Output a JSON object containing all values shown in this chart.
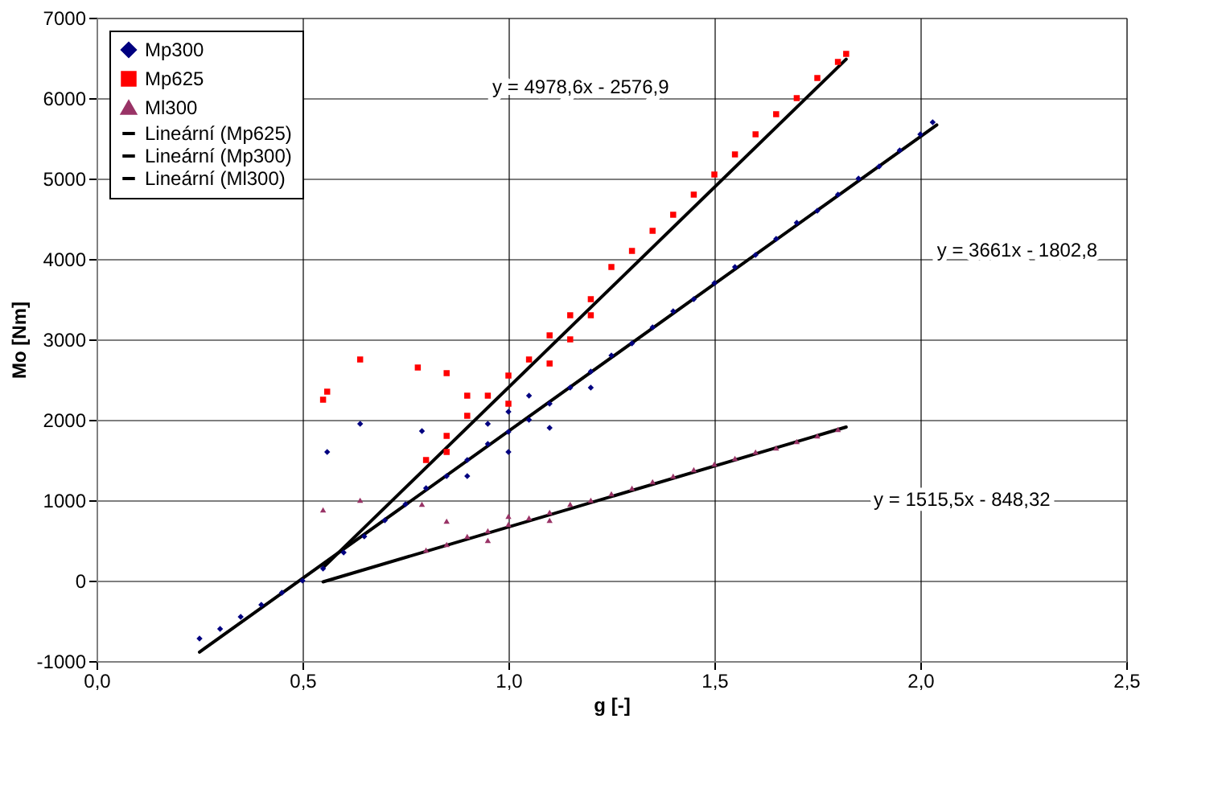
{
  "chart_data": {
    "type": "scatter",
    "xlabel": "g [-]",
    "ylabel": "Mo [Nm]",
    "xlim": [
      0,
      2.5
    ],
    "ylim": [
      -1000,
      7000
    ],
    "xticks": [
      {
        "value": 0,
        "label": "0,0"
      },
      {
        "value": 0.5,
        "label": "0,5"
      },
      {
        "value": 1,
        "label": "1,0"
      },
      {
        "value": 1.5,
        "label": "1,5"
      },
      {
        "value": 2,
        "label": "2,0"
      },
      {
        "value": 2.5,
        "label": "2,5"
      }
    ],
    "yticks": [
      -1000,
      0,
      1000,
      2000,
      3000,
      4000,
      5000,
      6000,
      7000
    ],
    "grid": true,
    "legend": "top left",
    "series": [
      {
        "name": "Mp300",
        "marker": "diamond",
        "color": "#000080",
        "x": [
          0.25,
          0.3,
          0.35,
          0.4,
          0.45,
          0.5,
          0.55,
          0.6,
          0.65,
          0.7,
          0.75,
          0.8,
          0.85,
          0.9,
          0.95,
          1.0,
          1.05,
          1.1,
          1.15,
          1.2,
          1.25,
          1.3,
          1.35,
          1.4,
          1.45,
          1.5,
          1.55,
          1.6,
          1.65,
          1.7,
          1.75,
          1.8,
          1.85,
          1.9,
          1.95,
          2.0,
          2.03,
          0.9,
          0.95,
          1.0,
          1.05,
          1.1,
          1.2,
          1.0,
          0.56,
          0.64,
          0.79
        ],
        "values": [
          -720,
          -600,
          -450,
          -300,
          -150,
          0,
          150,
          350,
          550,
          750,
          950,
          1150,
          1300,
          1500,
          1700,
          1850,
          2000,
          2200,
          2400,
          2600,
          2800,
          2950,
          3150,
          3350,
          3500,
          3700,
          3900,
          4050,
          4250,
          4450,
          4600,
          4800,
          5000,
          5150,
          5350,
          5550,
          5700,
          1300,
          1950,
          1600,
          2300,
          1900,
          2400,
          2100,
          1600,
          1950,
          1860
        ]
      },
      {
        "name": "Mp625",
        "marker": "square",
        "color": "#ff0000",
        "x": [
          0.8,
          0.85,
          0.9,
          0.95,
          1.0,
          1.05,
          1.1,
          1.15,
          1.2,
          1.25,
          1.3,
          1.35,
          1.4,
          1.45,
          1.5,
          1.55,
          1.6,
          1.65,
          1.7,
          1.75,
          1.8,
          1.82,
          0.85,
          0.9,
          1.0,
          1.1,
          1.15,
          1.2,
          0.55,
          0.56,
          0.64,
          0.78,
          0.85
        ],
        "values": [
          1500,
          1800,
          2050,
          2300,
          2550,
          2750,
          3050,
          3300,
          3500,
          3900,
          4100,
          4350,
          4550,
          4800,
          5050,
          5300,
          5550,
          5800,
          6000,
          6250,
          6450,
          6550,
          1600,
          2300,
          2200,
          2700,
          3000,
          3300,
          2250,
          2350,
          2750,
          2650,
          2580
        ]
      },
      {
        "name": "Ml300",
        "marker": "triangle",
        "color": "#993366",
        "x": [
          0.8,
          0.85,
          0.9,
          0.95,
          1.0,
          1.05,
          1.1,
          1.15,
          1.2,
          1.25,
          1.3,
          1.35,
          1.4,
          1.45,
          1.5,
          1.55,
          1.6,
          1.65,
          1.7,
          1.75,
          1.8,
          0.95,
          1.0,
          1.1,
          0.55,
          0.64,
          0.79,
          0.85
        ],
        "values": [
          380,
          450,
          550,
          620,
          700,
          780,
          850,
          950,
          1000,
          1080,
          1150,
          1230,
          1300,
          1380,
          1450,
          1520,
          1600,
          1650,
          1730,
          1800,
          1880,
          500,
          800,
          750,
          880,
          1000,
          950,
          740
        ]
      },
      {
        "name": "Lineární (Mp625)",
        "type": "line",
        "marker": "none",
        "color": "#000000",
        "x": [
          0.55,
          1.82
        ],
        "values": [
          161,
          6484
        ]
      },
      {
        "name": "Lineární (Mp300)",
        "type": "line",
        "marker": "none",
        "color": "#000000",
        "x": [
          0.25,
          2.04
        ],
        "values": [
          -888,
          5666
        ]
      },
      {
        "name": "Lineární (Ml300)",
        "type": "line",
        "marker": "none",
        "color": "#000000",
        "x": [
          0.55,
          1.82
        ],
        "values": [
          -15,
          1910
        ]
      }
    ],
    "annotations": [
      "y = 4978,6x - 2576,9",
      "y = 3661x - 1802,8",
      "y = 1515,5x - 848,32"
    ]
  }
}
